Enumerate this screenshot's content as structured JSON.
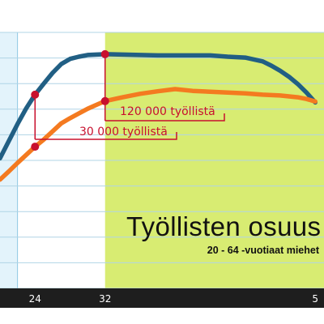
{
  "chart_data": {
    "type": "line",
    "title": "Työllisten osuus",
    "subtitle": "20 - 64 -vuotiaat miehet",
    "x_ticks": [
      "24",
      "32",
      "5"
    ],
    "xlim": [
      20,
      57
    ],
    "ylim": [
      40,
      100
    ],
    "grid": true,
    "regions": [
      {
        "from": 20,
        "to": 22,
        "color": "#e3f3fb"
      },
      {
        "from": 22,
        "to": 32,
        "color": "#ffffff"
      },
      {
        "from": 32,
        "to": 57,
        "color": "#d8ec72"
      }
    ],
    "series": [
      {
        "color": "#215f84",
        "x": [
          20,
          21,
          22,
          23,
          24,
          25,
          26,
          27,
          28,
          29,
          30,
          31,
          32,
          34,
          36,
          38,
          40,
          42,
          44,
          46,
          48,
          50,
          51,
          52,
          53,
          54,
          55,
          56
        ],
        "y": [
          70.5,
          74.5,
          78.5,
          82.2,
          85.4,
          88.0,
          90.5,
          92.6,
          93.8,
          94.3,
          94.7,
          94.8,
          94.9,
          94.8,
          94.7,
          94.6,
          94.6,
          94.6,
          94.6,
          94.3,
          94.1,
          93.2,
          92.2,
          91.0,
          89.6,
          87.9,
          85.9,
          83.6
        ]
      },
      {
        "color": "#f47a20",
        "x": [
          20,
          21,
          22,
          23,
          24,
          25,
          26,
          27,
          28,
          29,
          30,
          31,
          32,
          34,
          36,
          38,
          40,
          42,
          44,
          46,
          48,
          50,
          51,
          52,
          53,
          54,
          55,
          56
        ],
        "y": [
          65.5,
          67.4,
          69.4,
          71.3,
          73.2,
          74.9,
          76.8,
          78.7,
          79.9,
          81.0,
          82.1,
          83.0,
          83.9,
          84.8,
          85.6,
          86.2,
          86.7,
          86.3,
          86.1,
          85.9,
          85.7,
          85.4,
          85.3,
          85.2,
          85.0,
          84.8,
          84.4,
          83.8
        ]
      }
    ],
    "annotations": [
      {
        "label": "120 000 työllistä",
        "x": 32,
        "from_y": 94.9,
        "to_y": 83.9
      },
      {
        "label": "30 000 työllistä",
        "x": 24,
        "from_y": 85.4,
        "to_y": 73.2
      }
    ]
  }
}
